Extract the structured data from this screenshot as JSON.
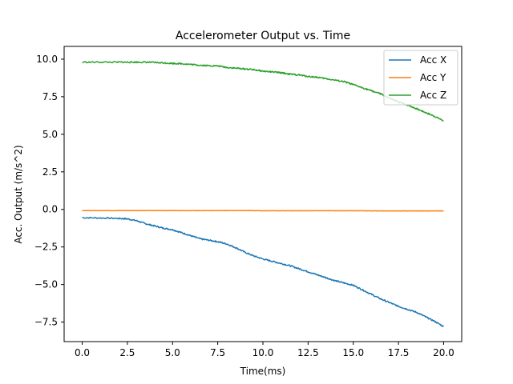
{
  "chart_data": {
    "type": "line",
    "title": "Accelerometer Output vs. Time",
    "xlabel": "Time(ms)",
    "ylabel": "Acc. Output (m/s^2)",
    "xlim": [
      -1.0,
      21.0
    ],
    "ylim": [
      -8.8,
      10.85
    ],
    "xticks": [
      0.0,
      2.5,
      5.0,
      7.5,
      10.0,
      12.5,
      15.0,
      17.5,
      20.0
    ],
    "xtick_labels": [
      "0.0",
      "2.5",
      "5.0",
      "7.5",
      "10.0",
      "12.5",
      "15.0",
      "17.5",
      "20.0"
    ],
    "yticks": [
      -7.5,
      -5.0,
      -2.5,
      0.0,
      2.5,
      5.0,
      7.5,
      10.0
    ],
    "ytick_labels": [
      "−7.5",
      "−5.0",
      "−2.5",
      "0.0",
      "2.5",
      "5.0",
      "7.5",
      "10.0"
    ],
    "grid": false,
    "legend_position": "top-right",
    "x": [
      0.0,
      1.0,
      2.0,
      2.5,
      3.0,
      3.5,
      4.0,
      4.5,
      5.0,
      5.5,
      6.0,
      6.5,
      7.0,
      7.5,
      8.0,
      8.5,
      9.0,
      9.5,
      10.0,
      10.5,
      11.0,
      11.5,
      12.0,
      12.5,
      13.0,
      13.5,
      14.0,
      14.5,
      15.0,
      15.5,
      16.0,
      16.5,
      17.0,
      17.5,
      18.0,
      18.5,
      19.0,
      19.5,
      20.0
    ],
    "series": [
      {
        "name": "Acc X",
        "color": "#1f77b4",
        "values": [
          -0.55,
          -0.57,
          -0.6,
          -0.63,
          -0.75,
          -0.95,
          -1.1,
          -1.25,
          -1.35,
          -1.55,
          -1.75,
          -1.95,
          -2.05,
          -2.15,
          -2.3,
          -2.55,
          -2.85,
          -3.1,
          -3.3,
          -3.45,
          -3.6,
          -3.75,
          -3.95,
          -4.15,
          -4.35,
          -4.55,
          -4.75,
          -4.9,
          -5.05,
          -5.35,
          -5.65,
          -5.95,
          -6.2,
          -6.45,
          -6.65,
          -6.85,
          -7.15,
          -7.45,
          -7.8
        ]
      },
      {
        "name": "Acc Y",
        "color": "#ff7f0e",
        "values": [
          -0.08,
          -0.08,
          -0.08,
          -0.08,
          -0.08,
          -0.08,
          -0.08,
          -0.08,
          -0.08,
          -0.08,
          -0.08,
          -0.08,
          -0.08,
          -0.08,
          -0.08,
          -0.08,
          -0.08,
          -0.08,
          -0.09,
          -0.09,
          -0.09,
          -0.09,
          -0.09,
          -0.09,
          -0.09,
          -0.09,
          -0.09,
          -0.09,
          -0.09,
          -0.09,
          -0.1,
          -0.1,
          -0.1,
          -0.1,
          -0.1,
          -0.1,
          -0.1,
          -0.1,
          -0.1
        ]
      },
      {
        "name": "Acc Z",
        "color": "#2ca02c",
        "values": [
          9.8,
          9.8,
          9.8,
          9.8,
          9.8,
          9.8,
          9.78,
          9.75,
          9.72,
          9.7,
          9.65,
          9.6,
          9.57,
          9.55,
          9.45,
          9.4,
          9.35,
          9.3,
          9.2,
          9.15,
          9.1,
          9.0,
          8.95,
          8.85,
          8.8,
          8.7,
          8.6,
          8.5,
          8.3,
          8.1,
          7.9,
          7.7,
          7.4,
          7.15,
          6.95,
          6.7,
          6.45,
          6.2,
          5.9
        ]
      }
    ]
  }
}
